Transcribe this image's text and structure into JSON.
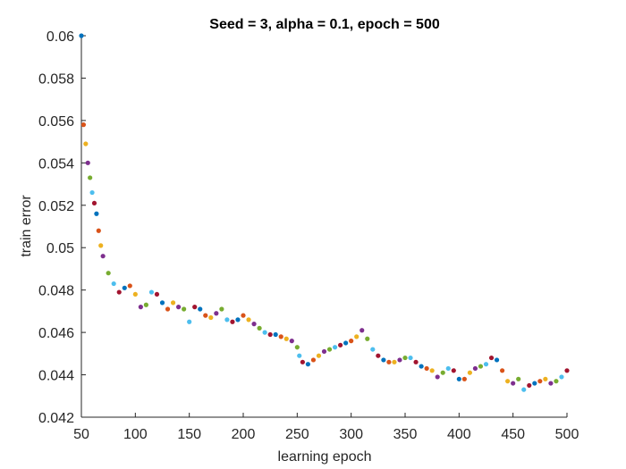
{
  "chart_data": {
    "type": "scatter",
    "title": "Seed = 3, alpha = 0.1, epoch = 500",
    "xlabel": "learning epoch",
    "ylabel": "train error",
    "xlim": [
      50,
      500
    ],
    "ylim": [
      0.042,
      0.06
    ],
    "xticks": [
      50,
      100,
      150,
      200,
      250,
      300,
      350,
      400,
      450,
      500
    ],
    "xtick_labels": [
      "50",
      "100",
      "150",
      "200",
      "250",
      "300",
      "350",
      "400",
      "450",
      "500"
    ],
    "yticks": [
      0.042,
      0.044,
      0.046,
      0.048,
      0.05,
      0.052,
      0.054,
      0.056,
      0.058,
      0.06
    ],
    "ytick_labels": [
      "0.042",
      "0.044",
      "0.046",
      "0.048",
      "0.05",
      "0.052",
      "0.054",
      "0.056",
      "0.058",
      "0.06"
    ],
    "grid": false,
    "marker_colors": [
      "#0072BD",
      "#D95319",
      "#EDB120",
      "#7E2F8E",
      "#77AC30",
      "#4DBEEE",
      "#A2142F"
    ],
    "x": [
      50,
      52,
      54,
      56,
      58,
      60,
      62,
      64,
      66,
      68,
      70,
      75,
      80,
      85,
      90,
      95,
      100,
      105,
      110,
      115,
      120,
      125,
      130,
      135,
      140,
      145,
      150,
      155,
      160,
      165,
      170,
      175,
      180,
      185,
      190,
      195,
      200,
      205,
      210,
      215,
      220,
      225,
      230,
      235,
      240,
      245,
      250,
      252,
      255,
      260,
      265,
      270,
      275,
      280,
      285,
      290,
      295,
      300,
      305,
      310,
      315,
      320,
      325,
      330,
      335,
      340,
      345,
      350,
      355,
      360,
      365,
      370,
      375,
      380,
      385,
      390,
      395,
      400,
      405,
      410,
      415,
      420,
      425,
      430,
      435,
      440,
      445,
      450,
      455,
      460,
      465,
      470,
      475,
      480,
      485,
      490,
      495,
      500
    ],
    "y": [
      0.06,
      0.0558,
      0.0549,
      0.054,
      0.0533,
      0.0526,
      0.0521,
      0.0516,
      0.0508,
      0.0501,
      0.0496,
      0.0488,
      0.0483,
      0.0479,
      0.0481,
      0.0482,
      0.0478,
      0.0472,
      0.0473,
      0.0479,
      0.0478,
      0.0474,
      0.0471,
      0.0474,
      0.0472,
      0.0471,
      0.0465,
      0.0472,
      0.0471,
      0.0468,
      0.0467,
      0.0469,
      0.0471,
      0.0466,
      0.0465,
      0.0466,
      0.0468,
      0.0466,
      0.0464,
      0.0462,
      0.046,
      0.0459,
      0.0459,
      0.0458,
      0.0457,
      0.0456,
      0.0453,
      0.0449,
      0.0446,
      0.0445,
      0.0447,
      0.0449,
      0.0451,
      0.0452,
      0.0453,
      0.0454,
      0.0455,
      0.0456,
      0.0458,
      0.0461,
      0.0457,
      0.0452,
      0.0449,
      0.0447,
      0.0446,
      0.0446,
      0.0447,
      0.0448,
      0.0448,
      0.0446,
      0.0444,
      0.0443,
      0.0442,
      0.0439,
      0.0441,
      0.0443,
      0.0442,
      0.0438,
      0.0438,
      0.0441,
      0.0443,
      0.0444,
      0.0445,
      0.0448,
      0.0447,
      0.0442,
      0.0437,
      0.0436,
      0.0438,
      0.0433,
      0.0435,
      0.0436,
      0.0437,
      0.0438,
      0.0436,
      0.0437,
      0.0439,
      0.0442
    ]
  }
}
